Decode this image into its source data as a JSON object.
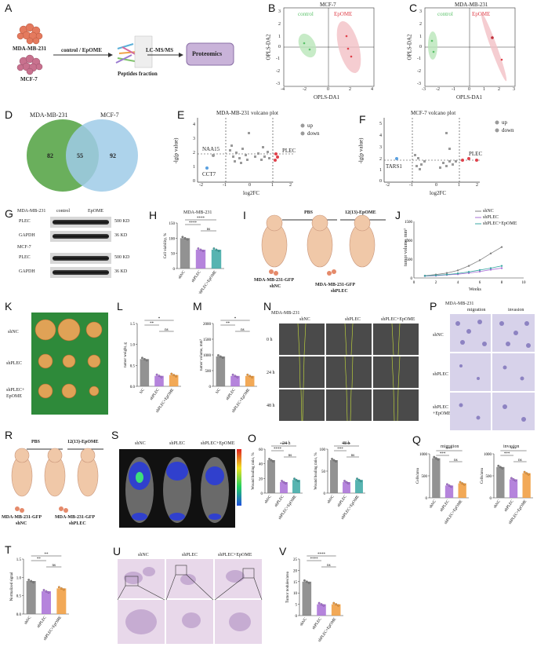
{
  "labels": {
    "A": "A",
    "B": "B",
    "C": "C",
    "D": "D",
    "E": "E",
    "F": "F",
    "G": "G",
    "H": "H",
    "I": "I",
    "J": "J",
    "K": "K",
    "L": "L",
    "M": "M",
    "N": "N",
    "O": "O",
    "P": "P",
    "Q": "Q",
    "R": "R",
    "S": "S",
    "T": "T",
    "U": "U",
    "V": "V"
  },
  "panelA": {
    "cell1": "MDA-MB-231",
    "cell2": "MCF-7",
    "arrow1": "control / EpOME",
    "peptides": "Peptides fraction",
    "arrow2": "LC-MS/MS",
    "box": "Proteomics"
  },
  "panelB": {
    "title": "MCF-7",
    "xlabel": "OPLS-DA1",
    "ylabel": "OPLS-DA2",
    "legend_control": "control",
    "legend_epome": "EpOME",
    "xticks": [
      "-4",
      "-2",
      "0",
      "2",
      "4"
    ],
    "yticks": [
      "3",
      "2",
      "1",
      "0",
      "-1",
      "-2",
      "-3"
    ]
  },
  "panelC": {
    "title": "MDA-MB-231",
    "xlabel": "OPLS-DA1",
    "ylabel": "OPLS-DA2",
    "legend_control": "control",
    "legend_epome": "EpOME",
    "xticks": [
      "-3",
      "-2",
      "-1",
      "0",
      "1",
      "2",
      "3"
    ],
    "yticks": [
      "3",
      "2",
      "1",
      "0",
      "-1",
      "-2",
      "-3"
    ]
  },
  "panelD": {
    "left": "MDA-MB-231",
    "right": "MCF-7",
    "n_left": "82",
    "n_both": "55",
    "n_right": "92"
  },
  "panelE": {
    "title": "MDA-MB-231 volcano plot",
    "xlabel": "log2FC",
    "ylabel": "-lg(p value)",
    "up": "up",
    "down": "down",
    "lab1": "NAA15",
    "lab2": "CCT7",
    "lab3": "PLEC",
    "xticks": [
      "-2",
      "-1",
      "0",
      "1",
      "2"
    ],
    "yticks": [
      "0",
      "1",
      "2",
      "3",
      "4"
    ]
  },
  "panelF": {
    "title": "MCF-7 volcano plot",
    "xlabel": "log2FC",
    "ylabel": "-lg(p value)",
    "up": "up",
    "down": "down",
    "lab1": "TARS1",
    "lab2": "PLEC",
    "xticks": [
      "-2",
      "-1",
      "0",
      "1",
      "2"
    ],
    "yticks": [
      "0",
      "1",
      "2",
      "3",
      "4",
      "5"
    ]
  },
  "panelG": {
    "cell1": "MDA-MB-231",
    "cell2": "MCF-7",
    "control": "control",
    "epome": "EpOME",
    "prot1": "PLEC",
    "prot2": "GAPDH",
    "prot3": "PLEC",
    "prot4": "GAPDH",
    "kd1": "500 KD",
    "kd2": "36 KD",
    "kd3": "500 KD",
    "kd4": "36 KD"
  },
  "panelH": {
    "title": "MDA-MB-231",
    "ylabel": "Cell viability, %",
    "groups": [
      "shNC",
      "shPLEC",
      "shPLEC+EpOME"
    ],
    "values": [
      100,
      62,
      62
    ],
    "yticks": [
      "0",
      "50",
      "100",
      "150"
    ],
    "sig1": "****",
    "sig2": "****",
    "sig3": "ns"
  },
  "panelI": {
    "pbs": "PBS",
    "treat": "12(13)-EpOME",
    "label1": "MDA-MB-231-GFP",
    "label1b": "shNC",
    "label2": "MDA-MB-231-GFP",
    "label2b": "shPLEC"
  },
  "panelJ": {
    "ylabel": "tumor volume, mm³",
    "xlabel": "Weeks",
    "legend": [
      "shNC",
      "shPLEC",
      "shPLEC+EpOME"
    ],
    "xticks": [
      "0",
      "2",
      "4",
      "6",
      "8",
      "10"
    ],
    "yticks": [
      "0",
      "500",
      "1000",
      "1500"
    ],
    "weeks": [
      1,
      2,
      3,
      4,
      5,
      6,
      7,
      8
    ],
    "series": [
      {
        "name": "shNC",
        "values": [
          60,
          90,
          130,
          200,
          320,
          470,
          650,
          820
        ]
      },
      {
        "name": "shPLEC",
        "values": [
          50,
          60,
          80,
          100,
          130,
          170,
          220,
          260
        ]
      },
      {
        "name": "shPLEC+EpOME",
        "values": [
          55,
          70,
          90,
          120,
          160,
          210,
          260,
          320
        ]
      }
    ]
  },
  "panelK": {
    "row1": "shNC",
    "row2": "shPLEC",
    "row3": "shPLEC+",
    "row3b": "EpOME"
  },
  "panelL": {
    "ylabel": "tumor weight, g",
    "groups": [
      "NC",
      "shPLEC",
      "shPLEC+EpOME"
    ],
    "values": [
      0.65,
      0.25,
      0.27
    ],
    "yticks": [
      "0.0",
      "0.5",
      "1.0",
      "1.5"
    ],
    "sig1": "**",
    "sig2": "*",
    "sig3": "ns"
  },
  "panelM": {
    "ylabel": "tumor volume, mm³",
    "groups": [
      "NC",
      "shPLEC",
      "shPLEC+EpOME"
    ],
    "values": [
      950,
      330,
      330
    ],
    "yticks": [
      "0",
      "500",
      "1000",
      "1500",
      "2000"
    ],
    "sig1": "**",
    "sig2": "*",
    "sig3": "ns"
  },
  "panelN": {
    "title": "MDA-MB-231",
    "col1": "shNC",
    "col2": "shPLEC",
    "col3": "shPLEC+EpOME",
    "row1": "0 h",
    "row2": "24 h",
    "row3": "48 h"
  },
  "panelO": {
    "t1": "24 h",
    "t2": "48 h",
    "ylabel": "Wound healing ratio, %",
    "groups": [
      "shNC",
      "shPLEC",
      "shPLEC+EpOME"
    ],
    "values24": [
      45,
      15,
      18
    ],
    "values48": [
      75,
      25,
      30
    ],
    "sig1": "****",
    "sig2": "****",
    "sig3": "ns",
    "sig4": "***",
    "sig5": "****",
    "sig6": "ns"
  },
  "panelP": {
    "title": "MDA-MB-231",
    "col1": "migration",
    "col2": "invasion",
    "row1": "shNC",
    "row2": "shPLEC",
    "row3": "shPLEC",
    "row3b": "+EpOME"
  },
  "panelQ": {
    "t1": "migration",
    "t2": "invasion",
    "ylabel": "Cells/area",
    "groups": [
      "shNC",
      "shPLEC",
      "shPLEC+EpOME"
    ],
    "values_mig": [
      900,
      280,
      330
    ],
    "values_inv": [
      700,
      420,
      560
    ],
    "sig1": "***",
    "sig2": "***",
    "sig3": "ns",
    "sig4": "***",
    "sig5": "***",
    "sig6": "ns"
  },
  "panelR": {
    "pbs": "PBS",
    "treat": "12(13)-EpOME",
    "label1": "MDA-MB-231-GFP",
    "label1b": "shNC",
    "label2": "MDA-MB-231-GFP",
    "label2b": "shPLEC"
  },
  "panelS": {
    "col1": "shNC",
    "col2": "shPLEC",
    "col3": "shPLEC+EpOME"
  },
  "panelT": {
    "ylabel": "Normalized signal",
    "groups": [
      "shNC",
      "shPLEC",
      "shPLEC+EpOME"
    ],
    "values": [
      0.9,
      0.62,
      0.7
    ],
    "yticks": [
      "0.0",
      "0.5",
      "1.0",
      "1.5"
    ],
    "sig1": "**",
    "sig2": "**",
    "sig3": "ns"
  },
  "panelU": {
    "col1": "shNC",
    "col2": "shPLEC",
    "col3": "shPLEC+EpOME"
  },
  "panelV": {
    "ylabel": "Tumor nodules/area",
    "groups": [
      "shNC",
      "shPLEC",
      "shPLEC+EpOME"
    ],
    "values": [
      15,
      5,
      5
    ],
    "yticks": [
      "0",
      "5",
      "10",
      "15",
      "20",
      "25"
    ],
    "sig1": "****",
    "sig2": "****",
    "sig3": "ns"
  },
  "colors": {
    "control": "#5bc26a",
    "epome": "#e0404a",
    "shNC": "#7f7f7f",
    "shPLEC": "#a86fd6",
    "combo": "#3aa7a3",
    "orange": "#f09a3a",
    "venn_left": "#5aa64a",
    "venn_right": "#9fcbe8"
  }
}
